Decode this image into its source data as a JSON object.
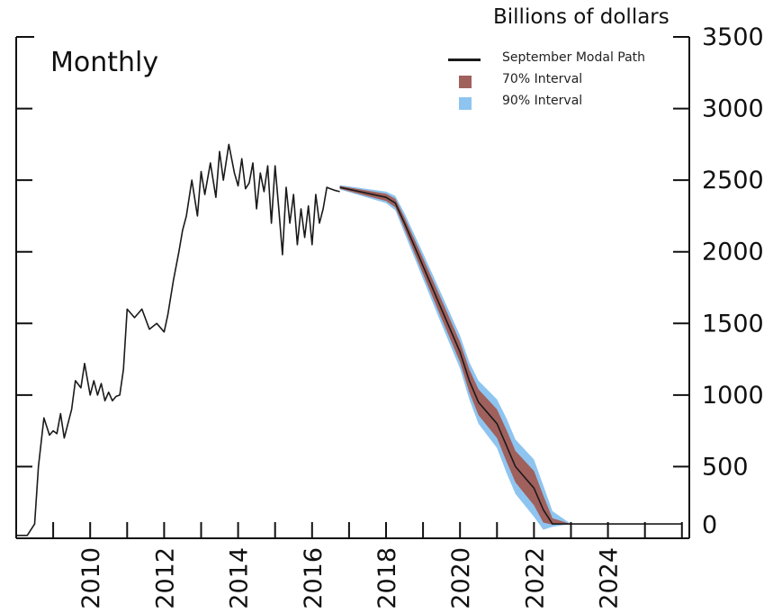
{
  "chart_data": {
    "type": "area",
    "title": "",
    "frequency_label": "Monthly",
    "unit_label": "Billions of dollars",
    "xlabel": "",
    "ylabel": "",
    "xlim": [
      2008.0,
      2026.2
    ],
    "ylim": [
      0,
      3500
    ],
    "y_ticks": [
      0,
      500,
      1000,
      1500,
      2000,
      2500,
      3000,
      3500
    ],
    "x_ticks": [
      2010,
      2012,
      2014,
      2016,
      2018,
      2020,
      2022,
      2024
    ],
    "y_axis_side": "right",
    "grid": false,
    "legend_position": "top-right",
    "legend": [
      {
        "label": "September Modal Path",
        "kind": "line",
        "color": "#1a1a1a"
      },
      {
        "label": "70% Interval",
        "kind": "swatch",
        "color": "#a0605c"
      },
      {
        "label": "90% Interval",
        "kind": "swatch",
        "color": "#8ec5f0"
      }
    ],
    "history": {
      "name": "",
      "color": "#1a1a1a",
      "x": [
        2008.0,
        2008.3,
        2008.5,
        2008.6,
        2008.75,
        2008.9,
        2009.0,
        2009.1,
        2009.2,
        2009.3,
        2009.4,
        2009.5,
        2009.6,
        2009.75,
        2009.85,
        2010.0,
        2010.1,
        2010.2,
        2010.3,
        2010.4,
        2010.5,
        2010.6,
        2010.7,
        2010.8,
        2010.9,
        2011.0,
        2011.2,
        2011.4,
        2011.6,
        2011.8,
        2012.0,
        2012.1,
        2012.25,
        2012.4,
        2012.5,
        2012.6,
        2012.75,
        2012.9,
        2013.0,
        2013.1,
        2013.25,
        2013.4,
        2013.5,
        2013.6,
        2013.75,
        2013.9,
        2014.0,
        2014.1,
        2014.2,
        2014.3,
        2014.4,
        2014.5,
        2014.6,
        2014.7,
        2014.8,
        2014.9,
        2015.0,
        2015.1,
        2015.2,
        2015.3,
        2015.4,
        2015.5,
        2015.6,
        2015.7,
        2015.8,
        2015.9,
        2016.0,
        2016.1,
        2016.2,
        2016.3,
        2016.4,
        2016.5,
        2016.6,
        2016.75
      ],
      "values": [
        20,
        20,
        100,
        500,
        840,
        720,
        750,
        730,
        870,
        700,
        800,
        900,
        1100,
        1050,
        1220,
        1000,
        1100,
        1000,
        1080,
        960,
        1020,
        960,
        990,
        1000,
        1180,
        1600,
        1540,
        1600,
        1460,
        1500,
        1440,
        1560,
        1800,
        2000,
        2150,
        2250,
        2500,
        2250,
        2560,
        2400,
        2620,
        2380,
        2700,
        2500,
        2750,
        2550,
        2460,
        2650,
        2440,
        2480,
        2620,
        2300,
        2550,
        2420,
        2600,
        2200,
        2600,
        2300,
        1980,
        2450,
        2200,
        2400,
        2050,
        2300,
        2100,
        2320,
        2050,
        2400,
        2200,
        2300,
        2450,
        2440,
        2430,
        2420
      ]
    },
    "projection": {
      "name": "September Modal Path",
      "x": [
        2016.75,
        2018.0,
        2018.25,
        2018.5,
        2019.0,
        2019.5,
        2020.0,
        2020.25,
        2020.5,
        2021.0,
        2021.25,
        2021.5,
        2022.0,
        2022.25,
        2022.5,
        2023.0,
        2024.0,
        2025.0,
        2026.0
      ],
      "values": [
        2450,
        2380,
        2340,
        2200,
        1900,
        1600,
        1300,
        1100,
        950,
        800,
        650,
        500,
        350,
        200,
        100,
        100,
        100,
        100,
        100
      ],
      "band70_lower": [
        2440,
        2355,
        2310,
        2160,
        1845,
        1535,
        1230,
        1020,
        860,
        700,
        540,
        390,
        230,
        110,
        95,
        100,
        100,
        100,
        100
      ],
      "band70_upper": [
        2460,
        2405,
        2370,
        2240,
        1955,
        1665,
        1370,
        1180,
        1040,
        900,
        760,
        610,
        470,
        300,
        140,
        100,
        100,
        100,
        100
      ],
      "band90_lower": [
        2435,
        2340,
        2290,
        2130,
        1810,
        1495,
        1185,
        970,
        800,
        630,
        460,
        310,
        150,
        60,
        80,
        100,
        100,
        100,
        100
      ],
      "band90_upper": [
        2465,
        2420,
        2390,
        2270,
        1990,
        1705,
        1415,
        1230,
        1100,
        970,
        840,
        690,
        550,
        370,
        190,
        100,
        100,
        100,
        100
      ]
    }
  }
}
